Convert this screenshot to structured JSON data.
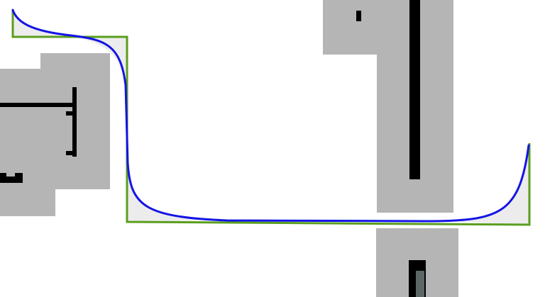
{
  "colors": {
    "background": "#ffffff",
    "block_fill": "#b5b5b5",
    "block_mark": "#000000",
    "block_mark_dark_gray": "#5c6866",
    "area_fill": "#ececec",
    "smooth_curve": "#1414e6",
    "step_outline": "#5a9e1e"
  },
  "figure": {
    "smooth_curve_name": "",
    "step_outline_name": ""
  }
}
